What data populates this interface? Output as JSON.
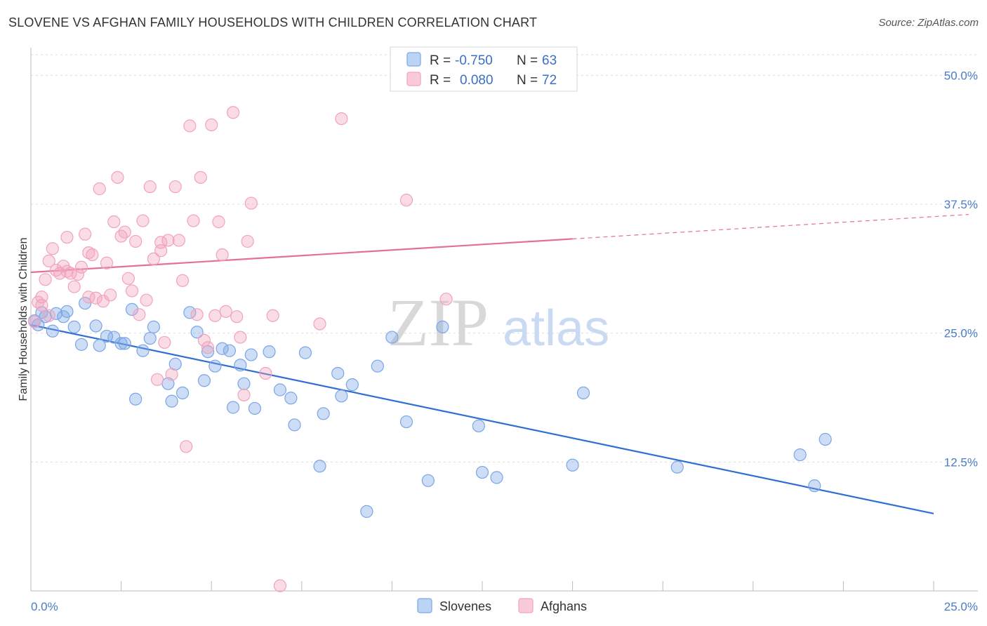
{
  "title": "SLOVENE VS AFGHAN FAMILY HOUSEHOLDS WITH CHILDREN CORRELATION CHART",
  "source": "Source: ZipAtlas.com",
  "watermark": {
    "zip": "ZIP",
    "atlas": "atlas"
  },
  "legend_box": [
    {
      "r_label": "R =",
      "r_value": "-0.750",
      "n_label": "N =",
      "n_value": "63"
    },
    {
      "r_label": "R =",
      "r_value": "0.080",
      "n_label": "N =",
      "n_value": "72"
    }
  ],
  "bottom_legend": [
    "Slovenes",
    "Afghans"
  ],
  "chart_data": {
    "type": "scatter",
    "title": "SLOVENE VS AFGHAN FAMILY HOUSEHOLDS WITH CHILDREN CORRELATION CHART",
    "xlabel": "",
    "ylabel": "Family Households with Children",
    "xlim": [
      0,
      25
    ],
    "ylim": [
      0,
      52
    ],
    "x_tick_labels": [
      "0.0%",
      "25.0%"
    ],
    "y_tick_values": [
      12.5,
      25.0,
      37.5,
      50.0
    ],
    "y_tick_labels": [
      "12.5%",
      "25.0%",
      "37.5%",
      "50.0%"
    ],
    "grid": true,
    "series": [
      {
        "name": "Slovenes",
        "color": "#7aa6e6",
        "line_color": "#2f6fd0",
        "r": -0.75,
        "n": 63,
        "trend": {
          "x": [
            0,
            25
          ],
          "y": [
            25.8,
            7.5
          ],
          "dashed_from": null
        },
        "points": [
          [
            0.1,
            26.2
          ],
          [
            0.3,
            27.0
          ],
          [
            0.4,
            26.6
          ],
          [
            0.6,
            25.2
          ],
          [
            0.7,
            26.9
          ],
          [
            0.9,
            26.6
          ],
          [
            1.0,
            27.1
          ],
          [
            1.2,
            25.6
          ],
          [
            1.4,
            23.9
          ],
          [
            1.5,
            27.9
          ],
          [
            1.8,
            25.7
          ],
          [
            1.9,
            23.8
          ],
          [
            2.1,
            24.7
          ],
          [
            2.3,
            24.6
          ],
          [
            2.5,
            24.0
          ],
          [
            2.6,
            24.0
          ],
          [
            2.8,
            27.3
          ],
          [
            2.9,
            18.6
          ],
          [
            3.1,
            23.3
          ],
          [
            3.3,
            24.5
          ],
          [
            3.4,
            25.6
          ],
          [
            3.8,
            20.1
          ],
          [
            3.9,
            18.4
          ],
          [
            4.0,
            22.0
          ],
          [
            4.2,
            19.2
          ],
          [
            4.4,
            27.0
          ],
          [
            4.6,
            25.1
          ],
          [
            4.8,
            20.4
          ],
          [
            4.9,
            23.2
          ],
          [
            5.1,
            21.8
          ],
          [
            5.3,
            23.5
          ],
          [
            5.5,
            23.3
          ],
          [
            5.6,
            17.8
          ],
          [
            5.8,
            21.9
          ],
          [
            5.9,
            20.1
          ],
          [
            6.1,
            22.9
          ],
          [
            6.2,
            17.7
          ],
          [
            6.6,
            23.2
          ],
          [
            6.9,
            19.5
          ],
          [
            7.2,
            18.7
          ],
          [
            7.3,
            16.1
          ],
          [
            7.6,
            23.1
          ],
          [
            8.0,
            12.1
          ],
          [
            8.1,
            17.2
          ],
          [
            8.5,
            21.1
          ],
          [
            8.6,
            18.9
          ],
          [
            8.9,
            20.0
          ],
          [
            9.3,
            7.7
          ],
          [
            9.6,
            21.8
          ],
          [
            10.0,
            24.6
          ],
          [
            10.4,
            16.4
          ],
          [
            11.0,
            10.7
          ],
          [
            11.4,
            25.6
          ],
          [
            12.4,
            16.0
          ],
          [
            12.5,
            11.5
          ],
          [
            12.9,
            11.0
          ],
          [
            15.0,
            12.2
          ],
          [
            15.3,
            19.2
          ],
          [
            17.9,
            12.0
          ],
          [
            21.3,
            13.2
          ],
          [
            21.7,
            10.2
          ],
          [
            22.0,
            14.7
          ],
          [
            0.2,
            25.8
          ]
        ]
      },
      {
        "name": "Afghans",
        "color": "#f2a2bd",
        "line_color": "#e4709a",
        "r": 0.08,
        "n": 72,
        "trend": {
          "x": [
            0,
            25
          ],
          "y": [
            30.9,
            36.3
          ],
          "dashed_from": 15.0
        },
        "points": [
          [
            0.1,
            26.1
          ],
          [
            0.2,
            28.0
          ],
          [
            0.3,
            28.5
          ],
          [
            0.4,
            30.2
          ],
          [
            0.5,
            26.7
          ],
          [
            0.6,
            33.2
          ],
          [
            0.7,
            31.1
          ],
          [
            0.8,
            30.8
          ],
          [
            0.9,
            31.5
          ],
          [
            1.0,
            34.3
          ],
          [
            1.1,
            30.8
          ],
          [
            1.2,
            29.5
          ],
          [
            1.3,
            30.7
          ],
          [
            1.4,
            31.4
          ],
          [
            1.5,
            34.6
          ],
          [
            1.6,
            32.8
          ],
          [
            1.7,
            32.6
          ],
          [
            1.8,
            28.4
          ],
          [
            1.9,
            39.0
          ],
          [
            2.0,
            28.1
          ],
          [
            2.1,
            31.8
          ],
          [
            2.2,
            28.7
          ],
          [
            2.3,
            35.8
          ],
          [
            2.4,
            40.1
          ],
          [
            2.5,
            34.4
          ],
          [
            2.6,
            34.8
          ],
          [
            2.7,
            30.3
          ],
          [
            2.8,
            29.1
          ],
          [
            3.0,
            26.8
          ],
          [
            3.1,
            35.9
          ],
          [
            3.2,
            28.2
          ],
          [
            3.3,
            39.2
          ],
          [
            3.4,
            32.2
          ],
          [
            3.5,
            20.5
          ],
          [
            3.6,
            33.0
          ],
          [
            3.7,
            24.1
          ],
          [
            3.8,
            34.0
          ],
          [
            3.9,
            21.0
          ],
          [
            4.0,
            39.2
          ],
          [
            4.1,
            34.0
          ],
          [
            4.2,
            30.1
          ],
          [
            4.3,
            14.0
          ],
          [
            4.4,
            45.1
          ],
          [
            4.5,
            35.9
          ],
          [
            4.6,
            26.8
          ],
          [
            4.7,
            40.1
          ],
          [
            4.8,
            24.3
          ],
          [
            4.9,
            23.6
          ],
          [
            5.0,
            45.2
          ],
          [
            5.1,
            26.7
          ],
          [
            5.2,
            35.8
          ],
          [
            5.3,
            32.6
          ],
          [
            5.4,
            27.1
          ],
          [
            5.6,
            46.4
          ],
          [
            5.7,
            26.6
          ],
          [
            5.8,
            24.6
          ],
          [
            5.9,
            19.0
          ],
          [
            6.0,
            33.9
          ],
          [
            6.1,
            37.6
          ],
          [
            6.5,
            21.1
          ],
          [
            6.7,
            26.7
          ],
          [
            6.9,
            0.5
          ],
          [
            8.0,
            25.9
          ],
          [
            8.6,
            45.8
          ],
          [
            10.4,
            37.9
          ],
          [
            11.5,
            28.3
          ],
          [
            0.3,
            27.7
          ],
          [
            1.6,
            28.5
          ],
          [
            2.9,
            33.9
          ],
          [
            3.6,
            33.8
          ],
          [
            1.0,
            31.0
          ],
          [
            0.5,
            32.0
          ]
        ]
      }
    ]
  }
}
